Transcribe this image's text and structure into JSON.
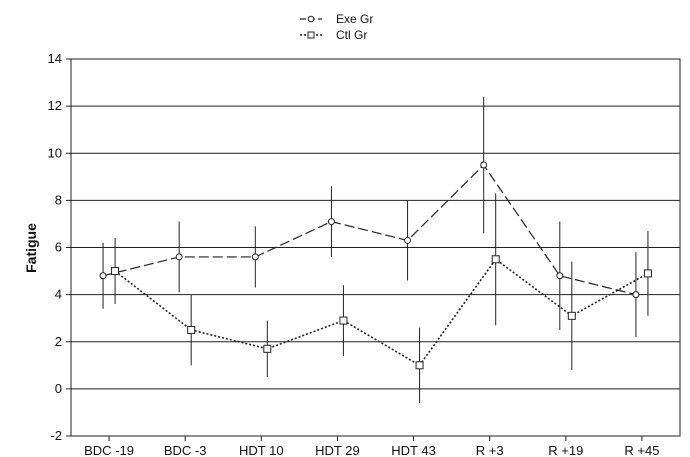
{
  "chart_data": {
    "type": "line",
    "title": "",
    "xlabel": "",
    "ylabel": "Fatigue",
    "categories": [
      "BDC -19",
      "BDC -3",
      "HDT 10",
      "HDT 29",
      "HDT 43",
      "R +3",
      "R +19",
      "R +45"
    ],
    "ylim": [
      -2,
      14
    ],
    "yticks": [
      -2,
      0,
      2,
      4,
      6,
      8,
      10,
      12,
      14
    ],
    "grid": "horizontal",
    "legend_position": "top-center",
    "series": [
      {
        "name": "Exe Gr",
        "marker": "circle",
        "line_style": "dashed",
        "values": [
          4.8,
          5.6,
          5.6,
          7.1,
          6.3,
          9.5,
          4.8,
          4.0
        ],
        "error": [
          1.4,
          1.5,
          1.3,
          1.5,
          1.7,
          2.9,
          2.3,
          1.8
        ]
      },
      {
        "name": "Ctl Gr",
        "marker": "square",
        "line_style": "dotted",
        "values": [
          5.0,
          2.5,
          1.7,
          2.9,
          1.0,
          5.5,
          3.1,
          4.9
        ],
        "error": [
          1.4,
          1.5,
          1.2,
          1.5,
          1.6,
          2.8,
          2.3,
          1.8
        ]
      }
    ]
  }
}
